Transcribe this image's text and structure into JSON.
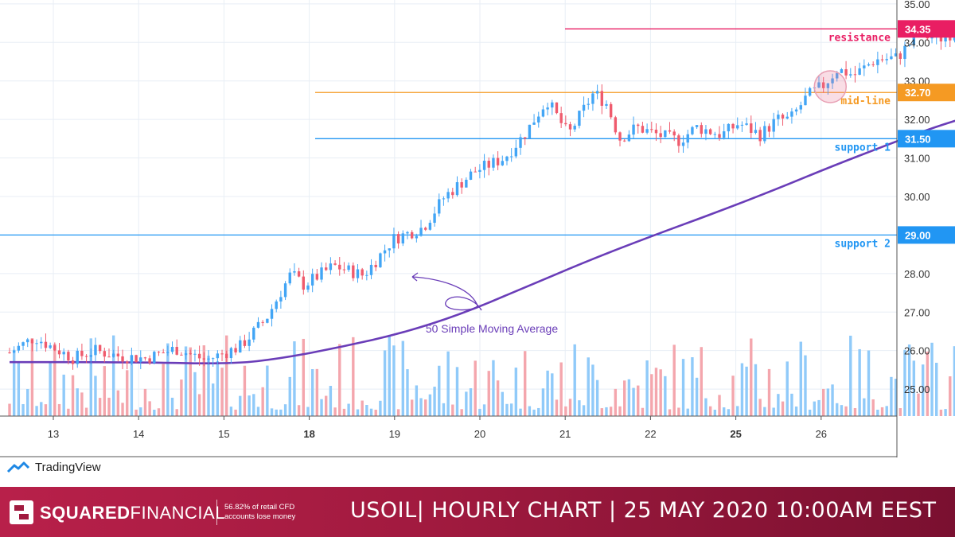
{
  "chart_data": {
    "type": "candlestick",
    "symbol": "USOIL",
    "x_ticks": [
      {
        "label": "13",
        "bold": false
      },
      {
        "label": "14",
        "bold": false
      },
      {
        "label": "15",
        "bold": false
      },
      {
        "label": "18",
        "bold": true
      },
      {
        "label": "19",
        "bold": false
      },
      {
        "label": "20",
        "bold": false
      },
      {
        "label": "21",
        "bold": false
      },
      {
        "label": "22",
        "bold": false
      },
      {
        "label": "25",
        "bold": true
      },
      {
        "label": "26",
        "bold": false
      }
    ],
    "y_ticks": [
      "35.00",
      "34.00",
      "33.00",
      "32.00",
      "31.00",
      "30.00",
      "29.00",
      "28.00",
      "27.00",
      "26.00",
      "25.00"
    ],
    "ylim": [
      24.3,
      35.1
    ],
    "levels": [
      {
        "name": "resistance",
        "value": 34.35,
        "label": "34.35",
        "color": "#e91e63"
      },
      {
        "name": "mid-line",
        "value": 32.7,
        "label": "32.70",
        "color": "#f59a23"
      },
      {
        "name": "support 1",
        "value": 31.5,
        "label": "31.50",
        "color": "#2196f3"
      },
      {
        "name": "support 2",
        "value": 29.0,
        "label": "29.00",
        "color": "#2196f3"
      }
    ],
    "price_path": [
      [
        0,
        25.95
      ],
      [
        0.3,
        26.35
      ],
      [
        0.45,
        26.15
      ],
      [
        0.75,
        25.8
      ],
      [
        1.0,
        26.0
      ],
      [
        1.3,
        25.85
      ],
      [
        1.6,
        25.8
      ],
      [
        1.95,
        26.05
      ],
      [
        2.3,
        25.75
      ],
      [
        2.7,
        26.1
      ],
      [
        3.0,
        26.8
      ],
      [
        3.3,
        28.0
      ],
      [
        3.45,
        27.7
      ],
      [
        3.8,
        28.2
      ],
      [
        4.15,
        27.95
      ],
      [
        4.5,
        28.9
      ],
      [
        4.85,
        29.2
      ],
      [
        5.1,
        30.0
      ],
      [
        5.45,
        30.65
      ],
      [
        5.8,
        31.0
      ],
      [
        6.05,
        31.65
      ],
      [
        6.15,
        32.0
      ],
      [
        6.3,
        32.5
      ],
      [
        6.55,
        31.6
      ],
      [
        6.85,
        32.7
      ],
      [
        7.0,
        32.4
      ],
      [
        7.15,
        31.5
      ],
      [
        7.35,
        31.8
      ],
      [
        7.6,
        31.6
      ],
      [
        7.85,
        31.45
      ],
      [
        8.05,
        31.8
      ],
      [
        8.35,
        31.6
      ],
      [
        8.55,
        31.9
      ],
      [
        8.8,
        31.6
      ],
      [
        9.0,
        32.0
      ],
      [
        9.15,
        32.0
      ],
      [
        9.35,
        32.6
      ],
      [
        9.55,
        32.9
      ],
      [
        9.7,
        33.3
      ],
      [
        9.9,
        33.15
      ],
      [
        10.15,
        33.55
      ],
      [
        10.4,
        33.6
      ],
      [
        10.65,
        34.2
      ],
      [
        10.9,
        34.1
      ],
      [
        11.05,
        34.25
      ],
      [
        11.3,
        34.1
      ],
      [
        11.55,
        33.6
      ],
      [
        11.75,
        33.9
      ],
      [
        12.0,
        33.8
      ],
      [
        12.2,
        32.8
      ],
      [
        12.35,
        31.8
      ],
      [
        12.55,
        32.0
      ],
      [
        12.7,
        31.4
      ],
      [
        12.85,
        31.9
      ],
      [
        13.05,
        32.2
      ],
      [
        13.3,
        32.6
      ],
      [
        13.55,
        32.85
      ],
      [
        13.8,
        33.4
      ],
      [
        14.0,
        33.1
      ],
      [
        14.15,
        33.4
      ],
      [
        14.35,
        33.0
      ],
      [
        14.55,
        33.55
      ],
      [
        14.75,
        33.55
      ]
    ],
    "sma": {
      "name": "50 Simple Moving Average",
      "period": 50,
      "color": "#6a3db8",
      "points": [
        [
          0,
          25.7
        ],
        [
          1.5,
          25.7
        ],
        [
          2.6,
          25.65
        ],
        [
          3.2,
          25.8
        ],
        [
          3.9,
          26.1
        ],
        [
          4.6,
          26.45
        ],
        [
          5.3,
          26.95
        ],
        [
          6.0,
          27.6
        ],
        [
          6.8,
          28.35
        ],
        [
          7.5,
          28.95
        ],
        [
          8.3,
          29.6
        ],
        [
          9.0,
          30.2
        ],
        [
          9.6,
          30.75
        ],
        [
          10.3,
          31.35
        ],
        [
          10.9,
          31.85
        ],
        [
          11.6,
          32.3
        ],
        [
          12.25,
          32.5
        ],
        [
          12.9,
          32.65
        ],
        [
          13.6,
          32.68
        ],
        [
          14.35,
          32.75
        ]
      ]
    },
    "annotation": {
      "text": "50 Simple Moving Average",
      "color": "#6a3db8"
    },
    "highlights": [
      {
        "x": 9.62,
        "price": 32.85
      },
      {
        "x": 12.22,
        "price": 32.8
      }
    ],
    "volume_ylim": [
      0,
      1
    ],
    "colors": {
      "up": "#42a5f5",
      "down": "#ef5b6d",
      "vol_up": "#90caf9",
      "vol_down": "#f4a6ad",
      "grid": "#e8eef5"
    },
    "grid": true
  },
  "branding": {
    "tradingview": "TradingView",
    "company_strong": "SQUARED",
    "company_rest": "FINANCIAL",
    "risk_warning": "56.82% of retail CFD accounts lose money",
    "footer_title": "USOIL| HOURLY CHART | 25 MAY 2020 10:00AM EEST"
  }
}
